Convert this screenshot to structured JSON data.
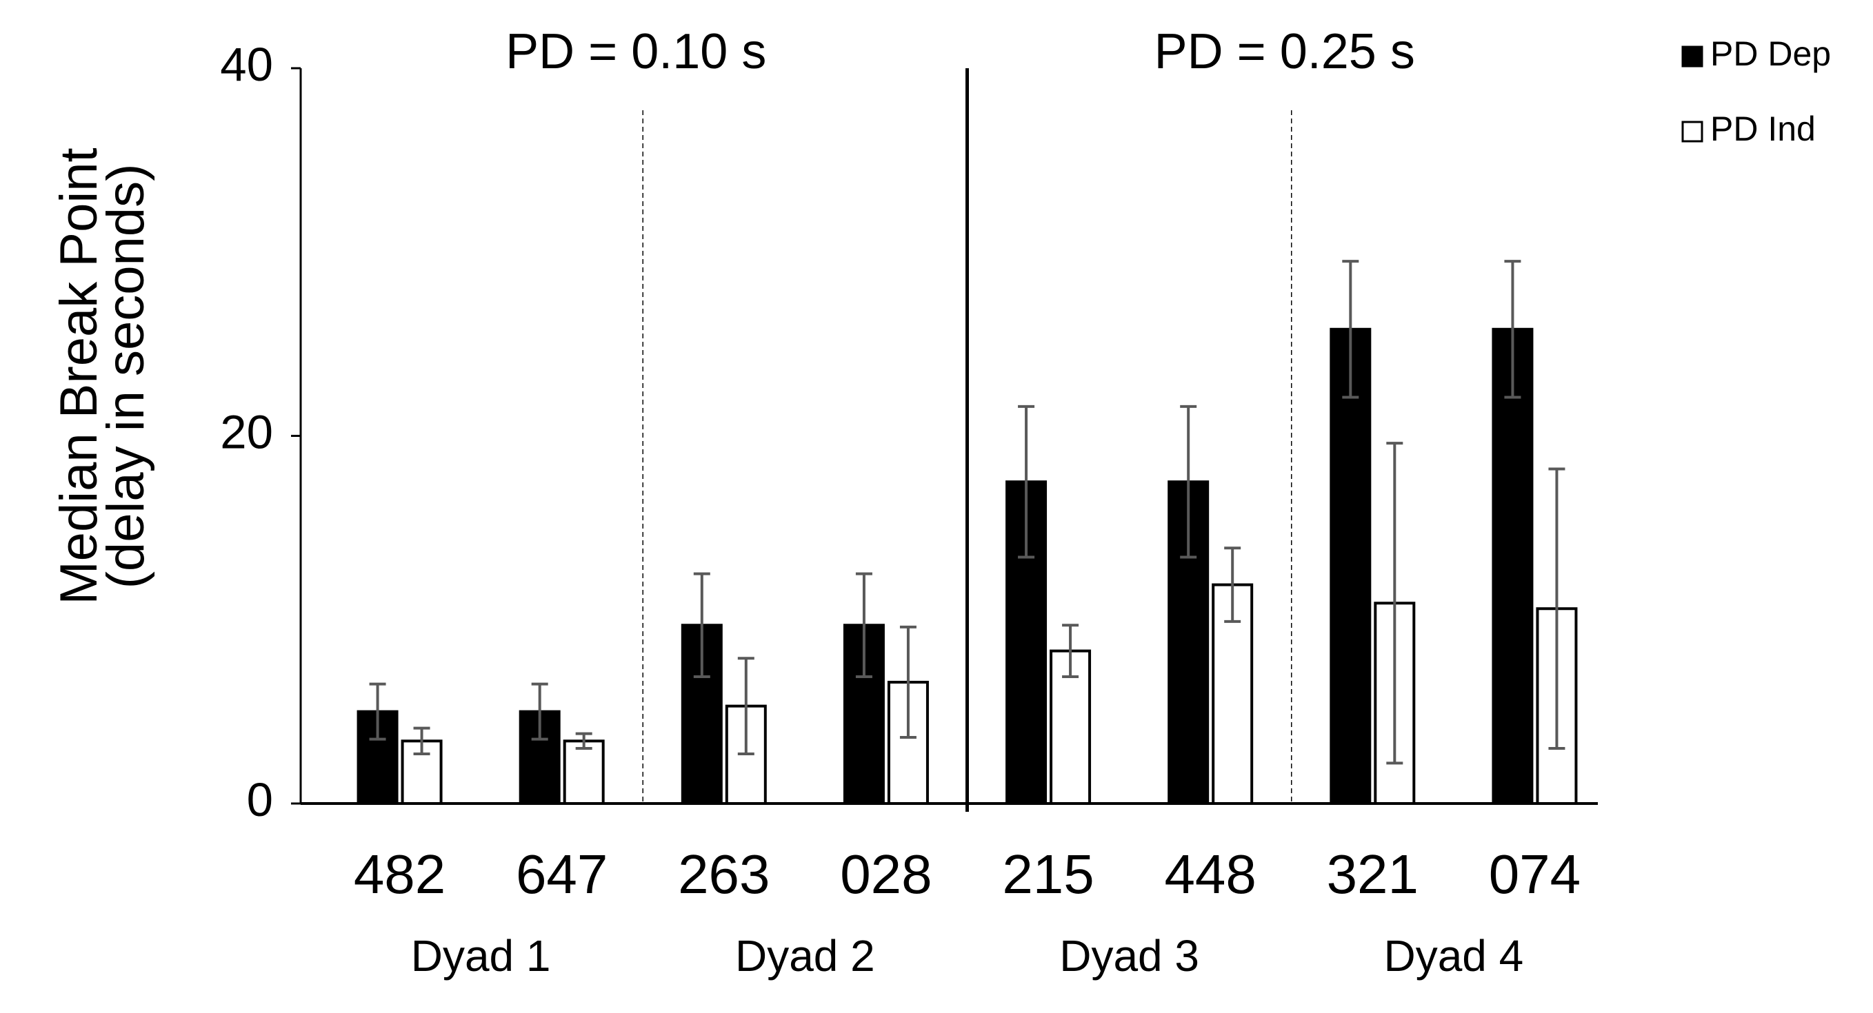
{
  "chart_data": {
    "type": "bar",
    "y_label": [
      "Median Break Point",
      "(delay in seconds)"
    ],
    "annotations": [
      "PD = 0.10 s",
      "PD = 0.25 s"
    ],
    "categories": [
      "482",
      "647",
      "263",
      "028",
      "215",
      "448",
      "321",
      "074"
    ],
    "groups": [
      "Dyad 1",
      "Dyad 2",
      "Dyad 3",
      "Dyad 4"
    ],
    "series": [
      {
        "name": "PD Dep",
        "color": "#000000",
        "values": [
          5.0,
          5.0,
          9.7,
          9.7,
          17.5,
          17.5,
          25.8,
          25.8
        ],
        "errors": [
          1.5,
          1.5,
          2.8,
          2.8,
          4.1,
          4.1,
          3.7,
          3.7
        ]
      },
      {
        "name": "PD Ind",
        "color": "#ffffff",
        "values": [
          3.4,
          3.4,
          5.3,
          6.6,
          8.3,
          11.9,
          10.9,
          10.6
        ],
        "errors": [
          0.7,
          0.4,
          2.6,
          3.0,
          1.4,
          2.0,
          8.7,
          7.6
        ]
      }
    ],
    "ylim": [
      0,
      40
    ],
    "yticks": [
      0,
      20,
      40
    ],
    "grid": false,
    "legend": "top-right"
  }
}
